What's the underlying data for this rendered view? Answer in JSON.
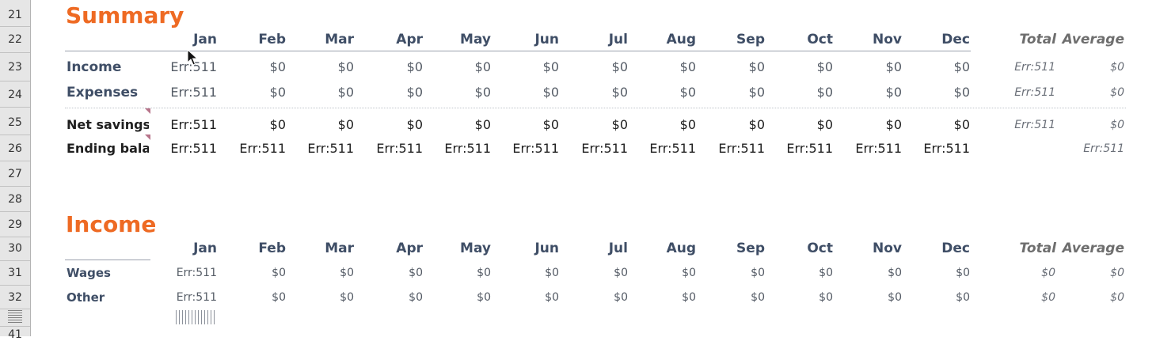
{
  "row_headers": [
    "21",
    "22",
    "23",
    "24",
    "25",
    "26",
    "27",
    "28",
    "29",
    "30",
    "31",
    "32",
    "41"
  ],
  "months": [
    "Jan",
    "Feb",
    "Mar",
    "Apr",
    "May",
    "Jun",
    "Jul",
    "Aug",
    "Sep",
    "Oct",
    "Nov",
    "Dec"
  ],
  "summary": {
    "title": "Summary",
    "total_label": "Total",
    "average_label": "Average",
    "rows": [
      {
        "label": "Income",
        "values": [
          "Err:511",
          "$0",
          "$0",
          "$0",
          "$0",
          "$0",
          "$0",
          "$0",
          "$0",
          "$0",
          "$0",
          "$0"
        ],
        "total": "Err:511",
        "average": "$0"
      },
      {
        "label": "Expenses",
        "values": [
          "Err:511",
          "$0",
          "$0",
          "$0",
          "$0",
          "$0",
          "$0",
          "$0",
          "$0",
          "$0",
          "$0",
          "$0"
        ],
        "total": "Err:511",
        "average": "$0"
      },
      {
        "label": "Net savings",
        "values": [
          "Err:511",
          "$0",
          "$0",
          "$0",
          "$0",
          "$0",
          "$0",
          "$0",
          "$0",
          "$0",
          "$0",
          "$0"
        ],
        "total": "Err:511",
        "average": "$0"
      },
      {
        "label": "Ending balance",
        "values": [
          "Err:511",
          "Err:511",
          "Err:511",
          "Err:511",
          "Err:511",
          "Err:511",
          "Err:511",
          "Err:511",
          "Err:511",
          "Err:511",
          "Err:511",
          "Err:511"
        ],
        "total": "",
        "average": "Err:511"
      }
    ]
  },
  "income": {
    "title": "Income",
    "total_label": "Total",
    "average_label": "Average",
    "rows": [
      {
        "label": "Wages",
        "values": [
          "Err:511",
          "$0",
          "$0",
          "$0",
          "$0",
          "$0",
          "$0",
          "$0",
          "$0",
          "$0",
          "$0",
          "$0"
        ],
        "total": "$0",
        "average": "$0"
      },
      {
        "label": "Other",
        "values": [
          "Err:511",
          "$0",
          "$0",
          "$0",
          "$0",
          "$0",
          "$0",
          "$0",
          "$0",
          "$0",
          "$0",
          "$0"
        ],
        "total": "$0",
        "average": "$0"
      }
    ]
  },
  "icons": {
    "cursor": "mouse-pointer-icon",
    "comment": "comment-indicator-icon"
  },
  "colors": {
    "title": "#ee6a23",
    "label": "#3f4e66",
    "row_header_bg": "#e6e6e6"
  }
}
